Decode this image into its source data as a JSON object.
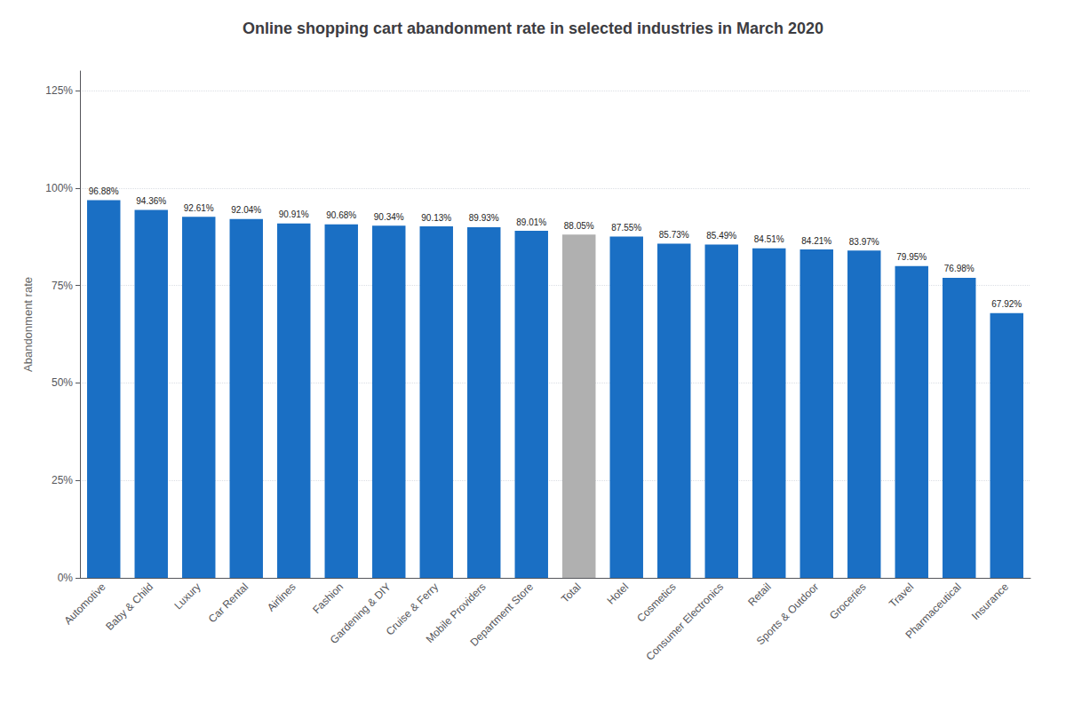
{
  "chart_data": {
    "type": "bar",
    "title": "Online shopping cart abandonment rate in selected industries in March 2020",
    "ylabel": "Abandonment rate",
    "categories": [
      "Automotive",
      "Baby & Child",
      "Luxury",
      "Car Rental",
      "Airlines",
      "Fashion",
      "Gardening & DIY",
      "Cruise & Ferry",
      "Mobile Providers",
      "Department Store",
      "Total",
      "Hotel",
      "Cosmetics",
      "Consumer Electronics",
      "Retail",
      "Sports & Outdoor",
      "Groceries",
      "Travel",
      "Pharmaceutical",
      "Insurance"
    ],
    "values": [
      96.88,
      94.36,
      92.61,
      92.04,
      90.91,
      90.68,
      90.34,
      90.13,
      89.93,
      89.01,
      88.05,
      87.55,
      85.73,
      85.49,
      84.51,
      84.21,
      83.97,
      79.95,
      76.98,
      67.92
    ],
    "value_labels": [
      "96.88%",
      "94.36%",
      "92.61%",
      "92.04%",
      "90.91%",
      "90.68%",
      "90.34%",
      "90.13%",
      "89.93%",
      "89.01%",
      "88.05%",
      "87.55%",
      "85.73%",
      "85.49%",
      "84.51%",
      "84.21%",
      "83.97%",
      "79.95%",
      "76.98%",
      "67.92%"
    ],
    "data_labels": true,
    "colors": [
      "#1a6fc4",
      "#1a6fc4",
      "#1a6fc4",
      "#1a6fc4",
      "#1a6fc4",
      "#1a6fc4",
      "#1a6fc4",
      "#1a6fc4",
      "#1a6fc4",
      "#1a6fc4",
      "#b0b0b0",
      "#1a6fc4",
      "#1a6fc4",
      "#1a6fc4",
      "#1a6fc4",
      "#1a6fc4",
      "#1a6fc4",
      "#1a6fc4",
      "#1a6fc4",
      "#1a6fc4"
    ],
    "ylim": [
      0,
      130
    ],
    "yticks": [
      {
        "value": 0,
        "label": "0%"
      },
      {
        "value": 25,
        "label": "25%"
      },
      {
        "value": 50,
        "label": "50%"
      },
      {
        "value": 75,
        "label": "75%"
      },
      {
        "value": 100,
        "label": "100%"
      },
      {
        "value": 125,
        "label": "125%"
      }
    ],
    "grid": true
  }
}
